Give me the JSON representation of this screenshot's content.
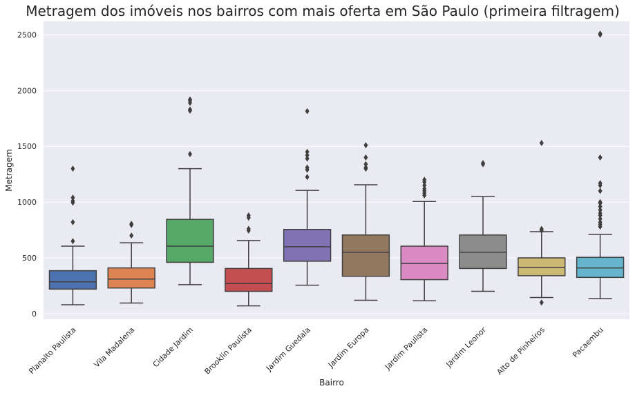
{
  "chart_data": {
    "type": "box",
    "title": "Metragem dos imóveis nos bairros com mais oferta em São Paulo (primeira filtragem)",
    "xlabel": "Bairro",
    "ylabel": "Metragem",
    "ylim": [
      -50,
      2620
    ],
    "yticks": [
      0,
      500,
      1000,
      1500,
      2000,
      2500
    ],
    "grid": true,
    "background_color": "#eaeaf2",
    "series": [
      {
        "category": "Planalto Paulista",
        "color": "#4c72b0",
        "whisker_low": 80,
        "q1": 220,
        "median": 285,
        "q3": 385,
        "whisker_high": 605,
        "outliers": [
          650,
          820,
          995,
          1010,
          1040,
          1300
        ]
      },
      {
        "category": "Vila Madalena",
        "color": "#dd8452",
        "whisker_low": 95,
        "q1": 230,
        "median": 310,
        "q3": 410,
        "whisker_high": 635,
        "outliers": [
          700,
          795,
          805
        ]
      },
      {
        "category": "Cidade Jardim",
        "color": "#55a868",
        "whisker_low": 260,
        "q1": 460,
        "median": 605,
        "q3": 845,
        "whisker_high": 1300,
        "outliers": [
          1430,
          1820,
          1830,
          1890,
          1910,
          1920
        ]
      },
      {
        "category": "Brooklin Paulista",
        "color": "#c44e52",
        "whisker_low": 70,
        "q1": 200,
        "median": 270,
        "q3": 405,
        "whisker_high": 655,
        "outliers": [
          745,
          760,
          860,
          880
        ]
      },
      {
        "category": "Jardim Guedala",
        "color": "#8172b3",
        "whisker_low": 255,
        "q1": 470,
        "median": 600,
        "q3": 755,
        "whisker_high": 1105,
        "outliers": [
          1225,
          1290,
          1310,
          1390,
          1420,
          1450,
          1815
        ]
      },
      {
        "category": "Jardim Europa",
        "color": "#937860",
        "whisker_low": 120,
        "q1": 335,
        "median": 550,
        "q3": 705,
        "whisker_high": 1155,
        "outliers": [
          1300,
          1310,
          1340,
          1400,
          1510
        ]
      },
      {
        "category": "Jardim Paulista",
        "color": "#da8bc3",
        "whisker_low": 115,
        "q1": 305,
        "median": 450,
        "q3": 605,
        "whisker_high": 1005,
        "outliers": [
          1060,
          1080,
          1100,
          1120,
          1150,
          1180,
          1200
        ]
      },
      {
        "category": "Jardim Leonor",
        "color": "#8c8c8c",
        "whisker_low": 200,
        "q1": 405,
        "median": 550,
        "q3": 705,
        "whisker_high": 1050,
        "outliers": [
          1340,
          1350
        ]
      },
      {
        "category": "Alto de Pinheiros",
        "color": "#ccb974",
        "whisker_low": 145,
        "q1": 340,
        "median": 415,
        "q3": 500,
        "whisker_high": 735,
        "outliers": [
          100,
          745,
          760,
          1530
        ]
      },
      {
        "category": "Pacaembu",
        "color": "#64b5cd",
        "whisker_low": 135,
        "q1": 325,
        "median": 410,
        "q3": 505,
        "whisker_high": 710,
        "outliers": [
          780,
          800,
          820,
          850,
          880,
          900,
          930,
          960,
          990,
          1000,
          1100,
          1150,
          1170,
          1400,
          2500,
          2510
        ]
      }
    ]
  }
}
